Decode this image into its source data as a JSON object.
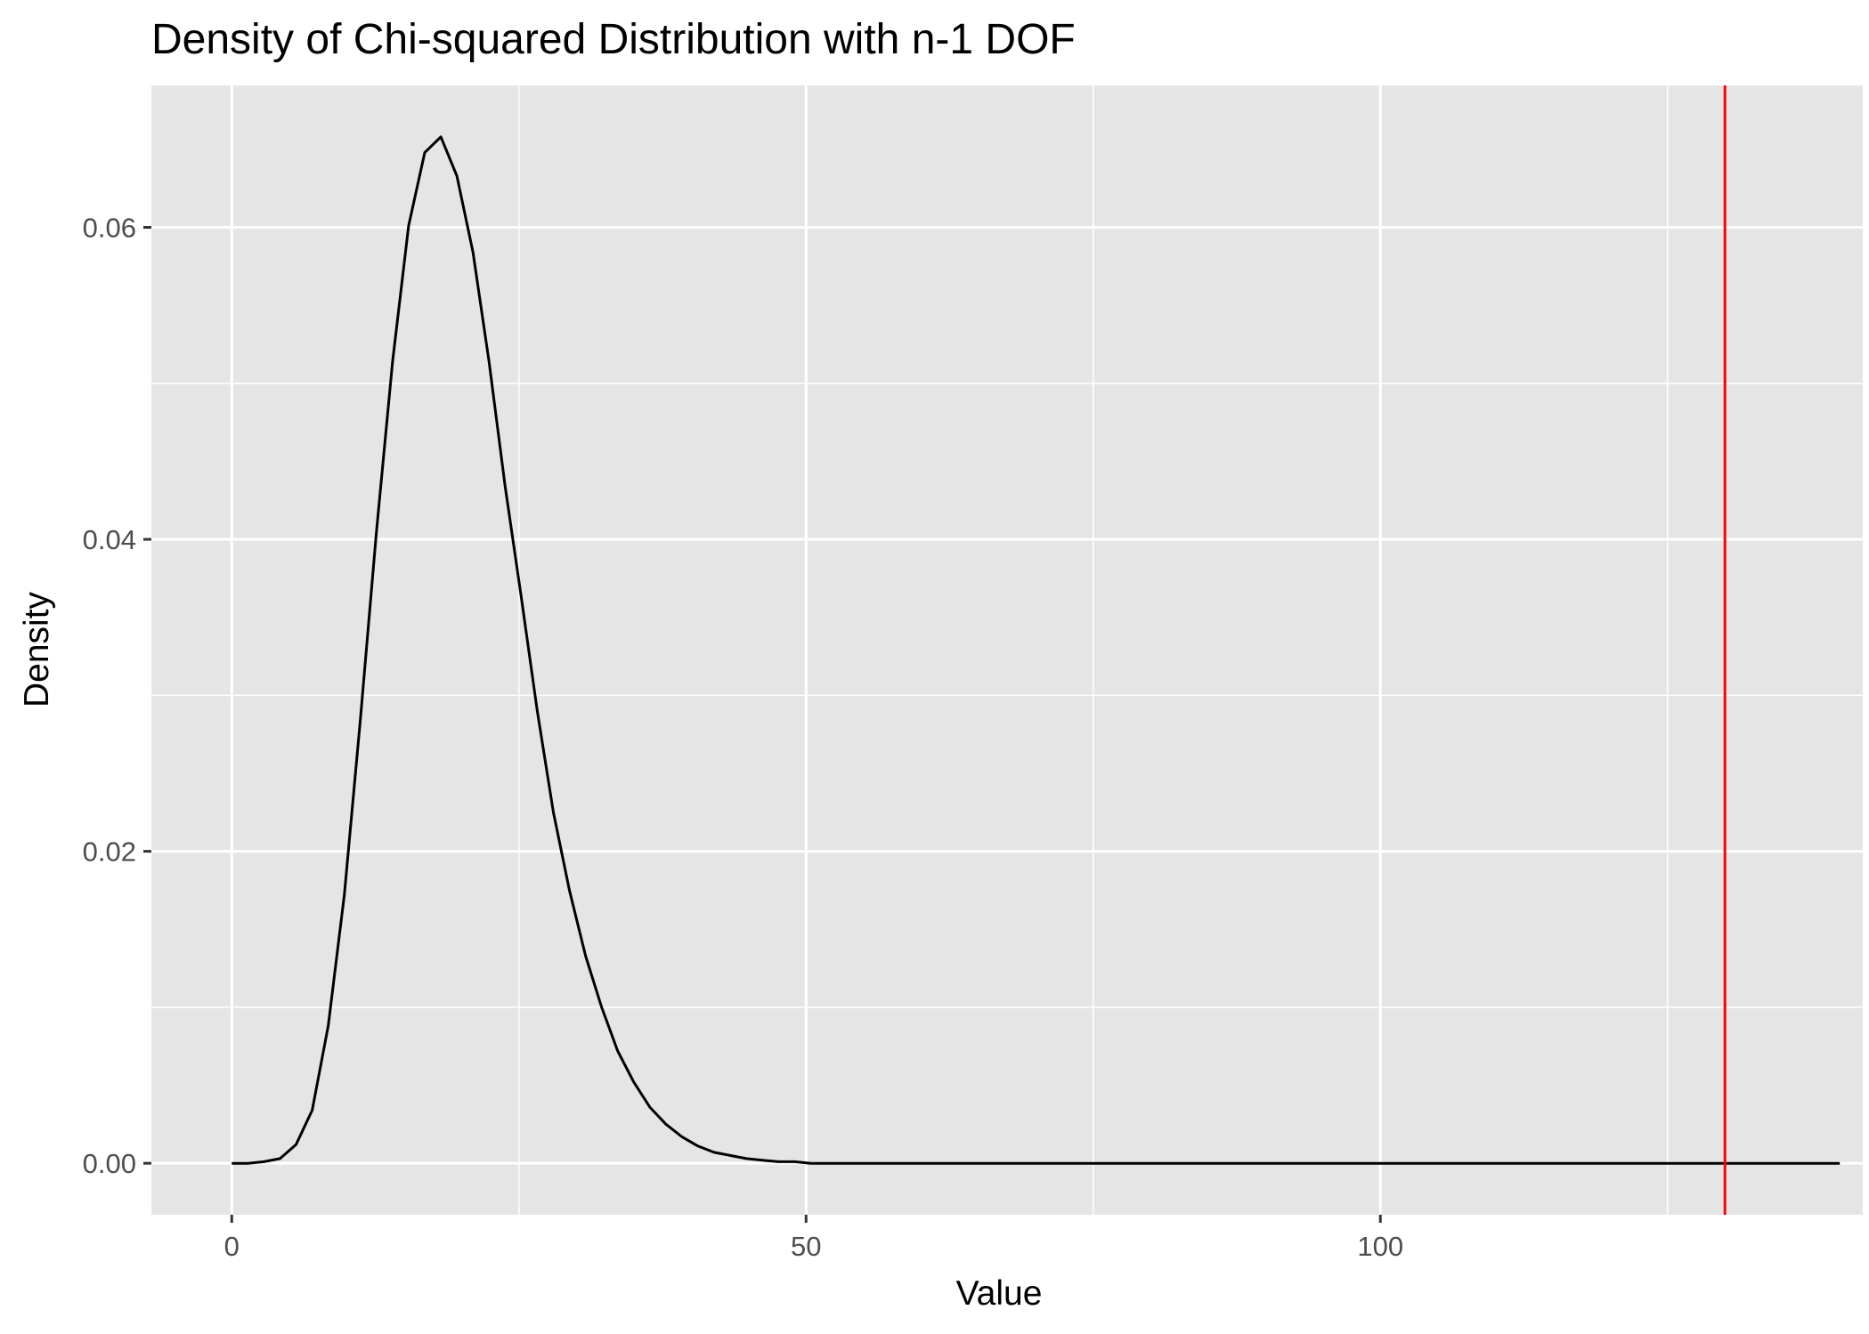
{
  "chart_data": {
    "type": "line",
    "title": "Density of Chi-squared Distribution with n-1 DOF",
    "xlabel": "Value",
    "ylabel": "Density",
    "xlim": [
      -7,
      142
    ],
    "ylim": [
      -0.0033,
      0.0691
    ],
    "x_ticks": [
      0,
      50,
      100
    ],
    "x_tick_labels": [
      "0",
      "50",
      "100"
    ],
    "x_minor_ticks": [
      25,
      75,
      125
    ],
    "y_ticks": [
      0.0,
      0.02,
      0.04,
      0.06
    ],
    "y_tick_labels": [
      "0.00",
      "0.02",
      "0.04",
      "0.06"
    ],
    "y_minor_ticks": [
      0.01,
      0.03,
      0.05
    ],
    "grid": true,
    "series": [
      {
        "color": "#000000",
        "x": [
          0,
          1.4,
          2.8,
          4.2,
          5.6,
          7.0,
          8.4,
          9.8,
          11.2,
          12.6,
          14.0,
          15.4,
          16.8,
          18.2,
          19.6,
          21.0,
          22.4,
          23.8,
          25.2,
          26.6,
          28.0,
          29.4,
          30.8,
          32.2,
          33.6,
          35.0,
          36.4,
          37.8,
          39.2,
          40.6,
          42.0,
          43.4,
          44.8,
          46.2,
          47.6,
          49.0,
          50.4,
          51.8,
          53.2,
          56.0,
          60.0,
          70.0,
          80.0,
          100.0,
          120.0,
          130.0,
          140.0
        ],
        "y": [
          0.0,
          0.0,
          0.0001,
          0.0003,
          0.0012,
          0.0034,
          0.0088,
          0.0172,
          0.0285,
          0.0405,
          0.0514,
          0.0601,
          0.0648,
          0.0658,
          0.0633,
          0.0584,
          0.0514,
          0.0434,
          0.0363,
          0.029,
          0.0225,
          0.0175,
          0.0133,
          0.01,
          0.0072,
          0.0052,
          0.0036,
          0.0025,
          0.0017,
          0.0011,
          0.0007,
          0.0005,
          0.0003,
          0.0002,
          0.0001,
          0.0001,
          0.0,
          0.0,
          0.0,
          0.0,
          0.0,
          0.0,
          0.0,
          0.0,
          0.0,
          0.0,
          0.0
        ]
      }
    ],
    "vlines": [
      {
        "x": 130,
        "color": "#ff0000"
      }
    ],
    "colors": {
      "panel_background": "#e5e5e5",
      "grid": "#ffffff",
      "curve": "#000000",
      "vline": "#ff0000",
      "tick_text": "#4d4d4d"
    }
  }
}
